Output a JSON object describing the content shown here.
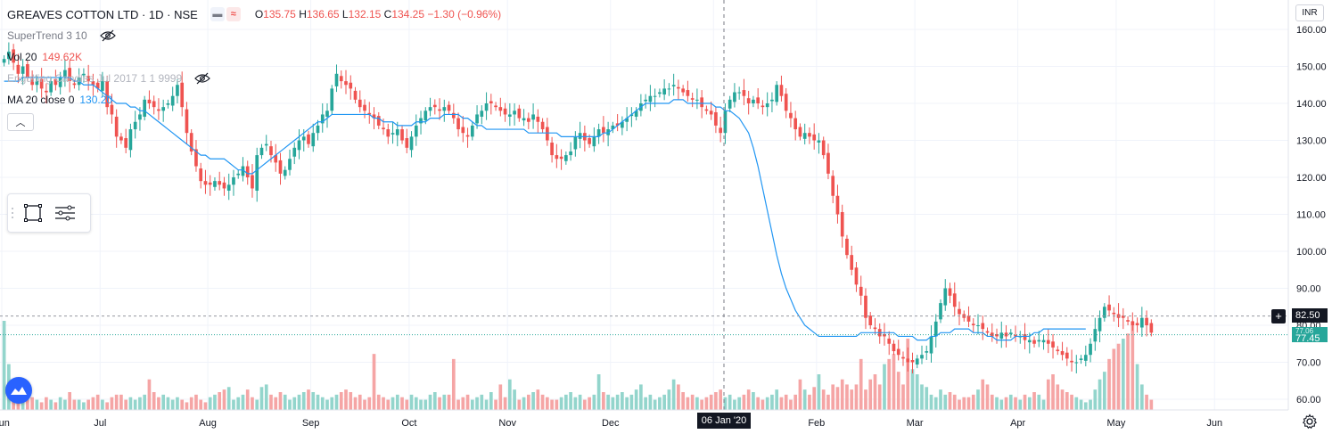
{
  "header": {
    "symbol_title": "GREAVES COTTON LTD · 1D · NSE",
    "ohlc": {
      "o_label": "O",
      "o_value": "135.75",
      "h_label": "H",
      "h_value": "136.65",
      "l_label": "L",
      "l_value": "132.15",
      "c_label": "C",
      "c_value": "134.25",
      "change": "−1.30 (−0.96%)"
    },
    "chip_icon": "dash-icon",
    "chip_icon2": "wave-icon"
  },
  "indicators": {
    "supertrend": {
      "name": "SuperTrend 3 10"
    },
    "vol": {
      "name": "Vol 20",
      "value": "149.62K"
    },
    "engulfing": {
      "name": "Engulfing Candles Jul 2017 1 1 9999"
    },
    "ma": {
      "name": "MA 20 close 0",
      "value": "130.20"
    }
  },
  "price_axis": {
    "currency": "INR",
    "current_price": "82.50",
    "ma_price": "77.45",
    "overlap_text": "77.06"
  },
  "time_axis": {
    "crosshair_date": "06 Jan '20"
  },
  "colors": {
    "up": "#26a69a",
    "down": "#ef5350",
    "up_volume": "#93d5cc",
    "down_volume": "#f5a5a5",
    "ma_line": "#2196f3",
    "grid": "#f0f3fa",
    "crosshair": "#787b86",
    "accent": "#2962ff"
  },
  "chart_data": {
    "type": "candlestick",
    "title": "GREAVES COTTON LTD · 1D · NSE",
    "ylim": [
      56,
      165
    ],
    "y_ticks": [
      "160.00",
      "150.00",
      "140.00",
      "130.00",
      "120.00",
      "110.00",
      "100.00",
      "90.00",
      "80.00",
      "70.00",
      "60.00"
    ],
    "y_tick_values": [
      160,
      150,
      140,
      130,
      120,
      110,
      100,
      90,
      80,
      70,
      60
    ],
    "x_ticks": [
      "Jun",
      "Jul",
      "Aug",
      "Sep",
      "Oct",
      "Nov",
      "Dec",
      "Jan",
      "Feb",
      "Mar",
      "Apr",
      "May",
      "Jun"
    ],
    "x_tick_days": [
      0,
      21,
      44,
      66,
      87,
      108,
      130,
      152,
      174,
      195,
      217,
      238,
      259
    ],
    "total_days": 270,
    "closes": [
      152,
      154,
      151,
      148,
      150,
      147,
      145,
      146,
      144,
      143,
      146,
      145,
      147,
      149,
      146,
      145,
      147,
      148,
      146,
      145,
      144,
      146,
      139,
      137,
      131,
      130,
      128,
      133,
      135,
      137,
      141,
      140,
      139,
      138,
      139,
      140,
      142,
      145,
      139,
      132,
      127,
      123,
      119,
      118,
      118,
      119,
      118,
      117,
      118,
      120,
      121,
      123,
      120,
      117,
      126,
      128,
      129,
      126,
      124,
      121,
      122,
      125,
      128,
      130,
      131,
      129,
      132,
      134,
      137,
      138,
      144,
      148,
      146,
      145,
      144,
      141,
      139,
      138,
      137,
      136,
      134,
      133,
      131,
      132,
      133,
      130,
      128,
      131,
      134,
      136,
      138,
      139,
      139,
      138,
      139,
      138,
      136,
      133,
      132,
      131,
      134,
      137,
      138,
      140,
      140,
      139,
      138,
      137,
      137,
      138,
      136,
      136,
      135,
      137,
      135,
      133,
      130,
      126,
      125,
      125,
      126,
      127,
      131,
      132,
      130,
      129,
      131,
      133,
      132,
      133,
      134,
      134,
      135,
      136,
      137,
      138,
      140,
      141,
      142,
      142,
      143,
      144,
      144,
      145,
      144,
      143,
      142,
      141,
      141,
      139,
      138,
      137,
      134,
      132,
      138,
      141,
      143,
      143,
      142,
      140,
      141,
      140,
      139,
      140,
      141,
      145,
      142,
      138,
      136,
      133,
      131,
      132,
      131,
      130,
      130,
      126,
      121,
      115,
      110,
      104,
      99,
      95,
      91,
      88,
      82,
      80,
      79,
      77,
      77,
      75,
      73,
      72,
      71,
      70,
      70,
      71,
      72,
      73,
      77,
      81,
      86,
      90,
      88,
      85,
      83,
      82,
      81,
      80,
      80,
      79,
      78,
      77,
      77,
      78,
      77,
      78,
      77,
      77,
      76,
      76,
      75,
      76,
      76,
      75,
      74,
      73,
      72,
      71,
      70,
      70,
      71,
      72,
      75,
      79,
      82,
      85,
      84,
      83,
      82,
      82,
      81,
      80,
      80,
      82,
      80,
      78
    ],
    "ma20": [
      146,
      146,
      146,
      146,
      147,
      147,
      147,
      147,
      147,
      147,
      147,
      147,
      147,
      147,
      147,
      146,
      146,
      145,
      145,
      145,
      144,
      143,
      142,
      141,
      140,
      140,
      140,
      139,
      139,
      138,
      138,
      137,
      136,
      135,
      134,
      133,
      132,
      131,
      130,
      129,
      128,
      127,
      126,
      126,
      125,
      125,
      125,
      125,
      124,
      123,
      122,
      122,
      121,
      121,
      122,
      123,
      124,
      125,
      126,
      127,
      128,
      129,
      130,
      131,
      132,
      133,
      134,
      135,
      135,
      136,
      137,
      137,
      137,
      137,
      137,
      137,
      137,
      137,
      137,
      136,
      136,
      135,
      135,
      135,
      134,
      134,
      134,
      134,
      135,
      135,
      135,
      136,
      136,
      136,
      137,
      137,
      137,
      137,
      136,
      136,
      135,
      134,
      134,
      133,
      133,
      133,
      133,
      133,
      133,
      133,
      133,
      133,
      132,
      132,
      132,
      132,
      132,
      132,
      132,
      131,
      131,
      131,
      131,
      131,
      131,
      131,
      131,
      131,
      132,
      132,
      133,
      134,
      135,
      136,
      137,
      138,
      139,
      140,
      140,
      140,
      140,
      140,
      140,
      141,
      141,
      141,
      140,
      140,
      140,
      140,
      140,
      140,
      139,
      139,
      138,
      138,
      137,
      136,
      134,
      132,
      128,
      123,
      117,
      111,
      105,
      99,
      94,
      90,
      87,
      84,
      82,
      80,
      79,
      78,
      77,
      77,
      77,
      77,
      77,
      77,
      77,
      77,
      77,
      78,
      78,
      78,
      78,
      78,
      78,
      78,
      78,
      77,
      77,
      77,
      77,
      76,
      76,
      76,
      77,
      77,
      78,
      78,
      78,
      79,
      79,
      79,
      79,
      78,
      78,
      78,
      77,
      77,
      76,
      76,
      76,
      76,
      77,
      77,
      77,
      77,
      78,
      78,
      79,
      79,
      79,
      79,
      79,
      79,
      79,
      79,
      79,
      79
    ],
    "volumes": [
      35,
      18,
      6,
      3,
      4,
      4,
      5,
      4,
      3,
      5,
      4,
      3,
      5,
      4,
      7,
      4,
      4,
      3,
      4,
      5,
      6,
      4,
      3,
      5,
      6,
      6,
      4,
      5,
      4,
      5,
      6,
      12,
      7,
      5,
      6,
      5,
      4,
      5,
      4,
      3,
      5,
      6,
      4,
      3,
      5,
      6,
      7,
      8,
      9,
      4,
      5,
      6,
      8,
      5,
      4,
      9,
      10,
      6,
      5,
      7,
      6,
      4,
      5,
      6,
      7,
      8,
      7,
      6,
      5,
      4,
      5,
      6,
      7,
      8,
      7,
      5,
      6,
      4,
      5,
      22,
      6,
      5,
      4,
      5,
      6,
      5,
      4,
      6,
      5,
      4,
      4,
      6,
      7,
      5,
      6,
      6,
      20,
      4,
      5,
      6,
      4,
      5,
      6,
      4,
      7,
      4,
      10,
      5,
      12,
      8,
      4,
      5,
      6,
      7,
      8,
      6,
      5,
      4,
      4,
      5,
      6,
      7,
      5,
      6,
      4,
      5,
      6,
      14,
      7,
      6,
      5,
      6,
      7,
      5,
      6,
      8,
      10,
      5,
      6,
      4,
      5,
      6,
      8,
      12,
      10,
      7,
      5,
      6,
      5,
      4,
      5,
      6,
      7,
      8,
      5,
      6,
      4,
      5,
      6,
      8,
      7,
      5,
      4,
      5,
      6,
      8,
      5,
      6,
      4,
      6,
      12,
      8,
      6,
      9,
      14,
      8,
      6,
      10,
      9,
      12,
      10,
      8,
      10,
      20,
      8,
      12,
      14,
      10,
      18,
      20,
      22,
      15,
      10,
      28,
      16,
      14,
      10,
      9,
      6,
      5,
      8,
      6,
      7,
      6,
      4,
      5,
      5,
      6,
      8,
      12,
      10,
      6,
      5,
      4,
      5,
      6,
      5,
      4,
      6,
      5,
      7,
      6,
      4,
      12,
      14,
      10,
      8,
      7,
      6,
      5,
      4,
      3,
      4,
      8,
      12,
      15,
      20,
      24,
      26,
      28,
      30,
      35,
      18,
      10,
      6,
      4,
      3,
      5,
      6,
      4,
      5,
      7,
      9,
      10,
      8
    ]
  }
}
